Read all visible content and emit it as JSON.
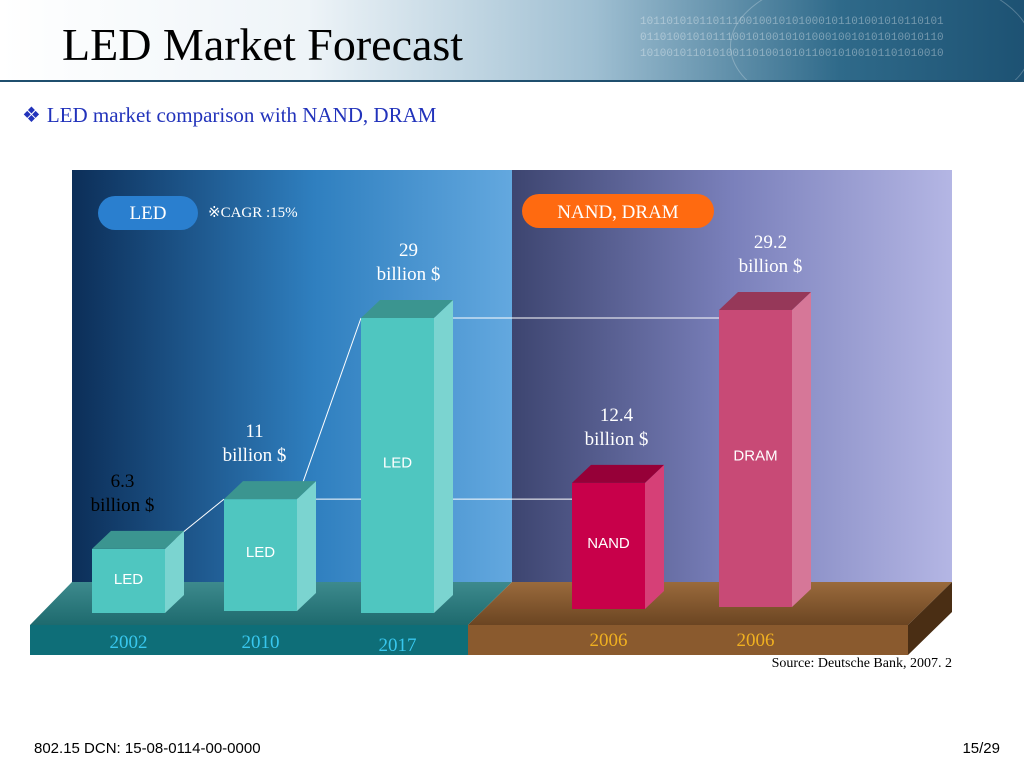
{
  "slide": {
    "title": "LED Market Forecast",
    "subtitle": "LED market comparison with NAND, DRAM",
    "source": "Source: Deutsche Bank, 2007. 2",
    "footer_left": "802.15 DCN: 15-08-0114-00-0000",
    "footer_right": "15/29"
  },
  "chart_data": {
    "type": "bar",
    "title": "",
    "units": "billion $",
    "groups": [
      {
        "name": "LED",
        "annotation": "※CAGR :15%"
      },
      {
        "name": "NAND, DRAM"
      }
    ],
    "bars": [
      {
        "group": "LED",
        "year": "2002",
        "label": "LED",
        "value": 6.3,
        "value_text": "6.3",
        "unit_text": "billion $"
      },
      {
        "group": "LED",
        "year": "2010",
        "label": "LED",
        "value": 11,
        "value_text": "11",
        "unit_text": "billion $"
      },
      {
        "group": "LED",
        "year": "2017",
        "label": "LED",
        "value": 29,
        "value_text": "29",
        "unit_text": "billion $"
      },
      {
        "group": "NAND, DRAM",
        "year": "2006",
        "label": "NAND",
        "value": 12.4,
        "value_text": "12.4",
        "unit_text": "billion $"
      },
      {
        "group": "NAND, DRAM",
        "year": "2006",
        "label": "DRAM",
        "value": 29.2,
        "value_text": "29.2",
        "unit_text": "billion $"
      }
    ],
    "colors": {
      "led_bar": "#4fc6c0",
      "nand_bar": "#c8004a",
      "dram_bar": "#c84a76",
      "led_panel": "#2f7fbf",
      "nand_panel": "#7a80bb",
      "led_pill": "#2a7fcf",
      "nand_pill": "#ff6a10",
      "led_year": "#38c7ee",
      "nand_year": "#f0b020"
    }
  }
}
